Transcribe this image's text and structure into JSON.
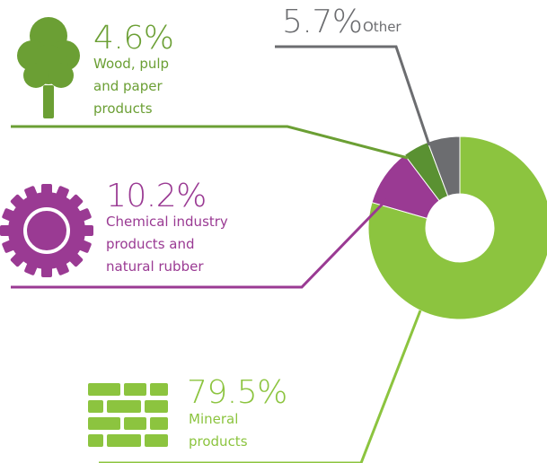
{
  "chart_data": {
    "type": "pie",
    "donut": true,
    "start": "top",
    "direction": "clockwise",
    "slices": [
      {
        "label": "Mineral\nproducts",
        "value": 79.5,
        "value_text": "79.5%",
        "color": "#8cc43f",
        "label_color": "#8cc43f",
        "icon": "bricks-icon"
      },
      {
        "label": "Chemical industry\nproducts and\nnatural rubber",
        "value": 10.2,
        "value_text": "10.2%",
        "color": "#9a3a93",
        "label_color": "#9a3a93",
        "icon": "gear-icon"
      },
      {
        "label": "Wood, pulp\nand paper\nproducts",
        "value": 4.6,
        "value_text": "4.6%",
        "color": "#5a9132",
        "label_color": "#6b9f34",
        "icon": "tree-icon"
      },
      {
        "label": "Other",
        "value": 5.7,
        "value_text": "5.7%",
        "color": "#6c6d70",
        "label_color": "#6c6d70",
        "icon": ""
      }
    ]
  }
}
